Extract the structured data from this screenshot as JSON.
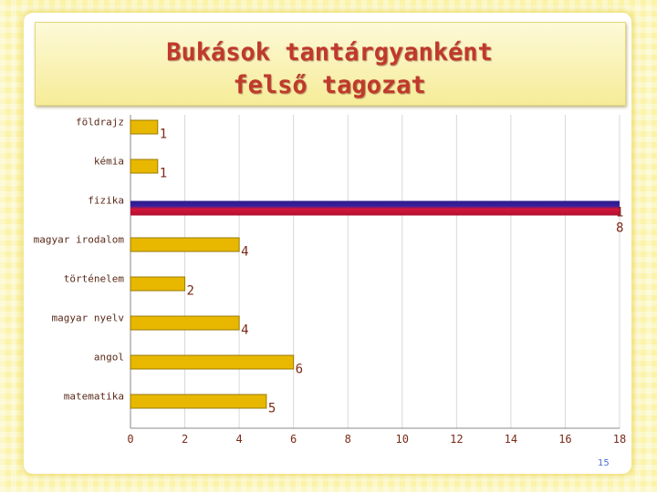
{
  "slide": {
    "title_line1": "Bukások tantárgyanként",
    "title_line2": "felső tagozat",
    "page_number": "15"
  },
  "colors": {
    "bar_fill": "#e8b800",
    "bar_stroke": "#9a7a00",
    "highlight_dark": "#2a1a8a",
    "highlight_red": "#d4163a",
    "label_color": "#7a2a18",
    "value_color": "#7a2a18",
    "grid": "#d8d8d8"
  },
  "chart_data": {
    "type": "bar",
    "orientation": "horizontal",
    "categories": [
      "földrajz",
      "kémia",
      "fizika",
      "magyar irodalom",
      "történelem",
      "magyar nyelv",
      "angol",
      "matematika"
    ],
    "values": [
      1,
      1,
      18,
      4,
      2,
      4,
      6,
      5
    ],
    "value_labels": [
      "1",
      "1",
      "1\n8",
      "4",
      "2",
      "4",
      "6",
      "5"
    ],
    "xlim": [
      0,
      18
    ],
    "xticks": [
      "0",
      "2",
      "4",
      "6",
      "8",
      "10",
      "12",
      "14",
      "16",
      "18"
    ],
    "highlight_category": "fizika",
    "grid": true
  }
}
